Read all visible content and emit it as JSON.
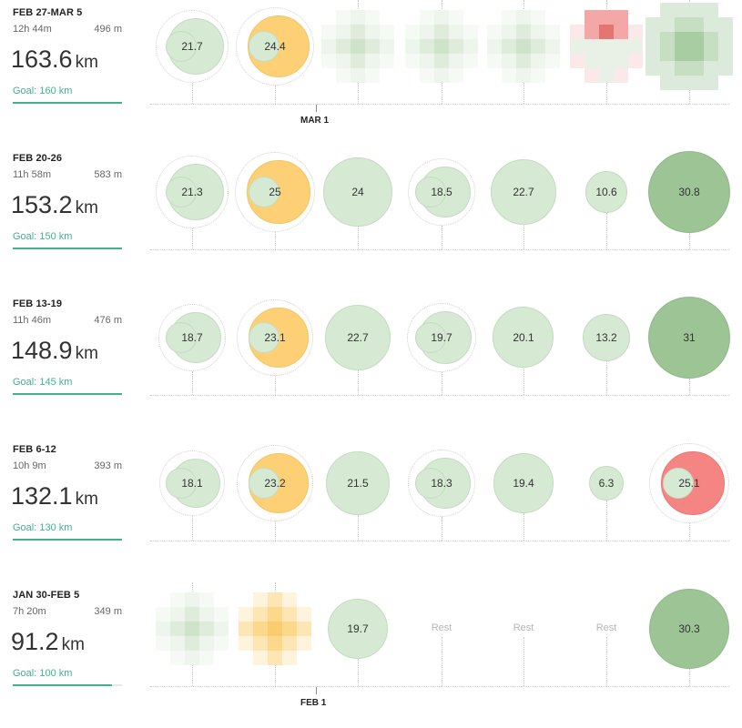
{
  "weeks": [
    {
      "range": "FEB 27-MAR 5",
      "duration": "12h 44m",
      "elevation": "496 m",
      "distance": "163.6",
      "unit": "km",
      "goal": "Goal: 160 km",
      "goal_progress": 1.0,
      "days": [
        {
          "kind": "double",
          "value": "21.7",
          "color": "green"
        },
        {
          "kind": "double",
          "value": "24.4",
          "color": "orange"
        },
        {
          "kind": "blurred",
          "color": "green"
        },
        {
          "kind": "blurred",
          "color": "green"
        },
        {
          "kind": "blurred",
          "color": "green"
        },
        {
          "kind": "blurred",
          "color": "red"
        },
        {
          "kind": "blurred",
          "color": "dark"
        }
      ]
    },
    {
      "range": "FEB 20-26",
      "duration": "11h 58m",
      "elevation": "583 m",
      "distance": "153.2",
      "unit": "km",
      "goal": "Goal: 150 km",
      "goal_progress": 1.0,
      "days": [
        {
          "kind": "double",
          "value": "21.3",
          "color": "green"
        },
        {
          "kind": "double",
          "value": "25",
          "color": "orange"
        },
        {
          "kind": "single",
          "value": "24",
          "color": "green"
        },
        {
          "kind": "double",
          "value": "18.5",
          "color": "green"
        },
        {
          "kind": "single",
          "value": "22.7",
          "color": "green"
        },
        {
          "kind": "single",
          "value": "10.6",
          "color": "green"
        },
        {
          "kind": "single",
          "value": "30.8",
          "color": "dark"
        }
      ]
    },
    {
      "range": "FEB 13-19",
      "duration": "11h 46m",
      "elevation": "476 m",
      "distance": "148.9",
      "unit": "km",
      "goal": "Goal: 145 km",
      "goal_progress": 1.0,
      "days": [
        {
          "kind": "double",
          "value": "18.7",
          "color": "green"
        },
        {
          "kind": "double",
          "value": "23.1",
          "color": "orange"
        },
        {
          "kind": "single",
          "value": "22.7",
          "color": "green"
        },
        {
          "kind": "double",
          "value": "19.7",
          "color": "green"
        },
        {
          "kind": "single",
          "value": "20.1",
          "color": "green"
        },
        {
          "kind": "single",
          "value": "13.2",
          "color": "green"
        },
        {
          "kind": "single",
          "value": "31",
          "color": "dark"
        }
      ]
    },
    {
      "range": "FEB 6-12",
      "duration": "10h 9m",
      "elevation": "393 m",
      "distance": "132.1",
      "unit": "km",
      "goal": "Goal: 130 km",
      "goal_progress": 1.0,
      "days": [
        {
          "kind": "double",
          "value": "18.1",
          "color": "green"
        },
        {
          "kind": "double",
          "value": "23.2",
          "color": "orange"
        },
        {
          "kind": "single",
          "value": "21.5",
          "color": "green"
        },
        {
          "kind": "double",
          "value": "18.3",
          "color": "green"
        },
        {
          "kind": "single",
          "value": "19.4",
          "color": "green"
        },
        {
          "kind": "single",
          "value": "6.3",
          "color": "green"
        },
        {
          "kind": "double",
          "value": "25.1",
          "color": "red"
        }
      ]
    },
    {
      "range": "JAN 30-FEB 5",
      "duration": "7h 20m",
      "elevation": "349 m",
      "distance": "91.2",
      "unit": "km",
      "goal": "Goal: 100 km",
      "goal_progress": 0.912,
      "days": [
        {
          "kind": "blurred",
          "color": "green"
        },
        {
          "kind": "blurred",
          "color": "orange"
        },
        {
          "kind": "single",
          "value": "19.7",
          "color": "green"
        },
        {
          "kind": "rest",
          "value": "Rest"
        },
        {
          "kind": "rest",
          "value": "Rest"
        },
        {
          "kind": "rest",
          "value": "Rest"
        },
        {
          "kind": "single",
          "value": "30.3",
          "color": "dark"
        }
      ]
    }
  ],
  "month_markers": [
    {
      "label": "MAR 1",
      "week": 0
    },
    {
      "label": "FEB 1",
      "week": 4
    }
  ]
}
